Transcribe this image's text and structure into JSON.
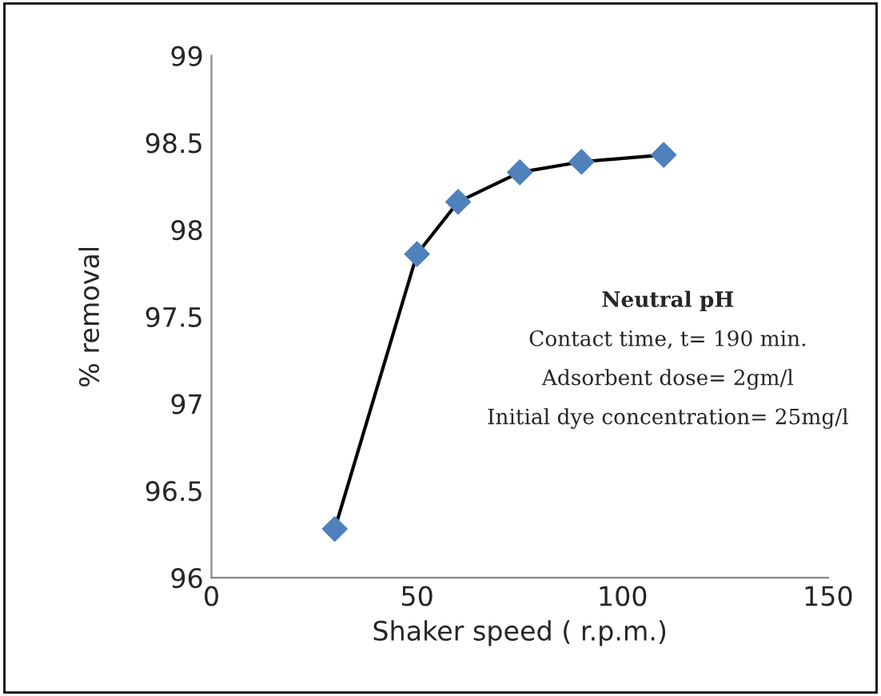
{
  "chart_data": {
    "type": "line",
    "xlabel": "Shaker speed ( r.p.m.)",
    "ylabel": "% removal",
    "x": [
      30,
      50,
      60,
      75,
      90,
      110
    ],
    "series": [
      {
        "color": "#4f81bd",
        "values": [
          96.28,
          97.86,
          98.16,
          98.33,
          98.39,
          98.43
        ]
      }
    ],
    "xlim": [
      0,
      150
    ],
    "xticks": [
      0,
      50,
      100,
      150
    ],
    "ylim": [
      96,
      99
    ],
    "yticks": [
      96,
      96.5,
      97,
      97.5,
      98,
      98.5,
      99
    ],
    "marker": "diamond",
    "line_style": "solid",
    "grid": false,
    "legend": false,
    "annotations": [
      "Neutral pH",
      "Contact time, t= 190 min.",
      "Adsorbent dose= 2gm/l",
      "Initial dye concentration= 25mg/l"
    ]
  }
}
